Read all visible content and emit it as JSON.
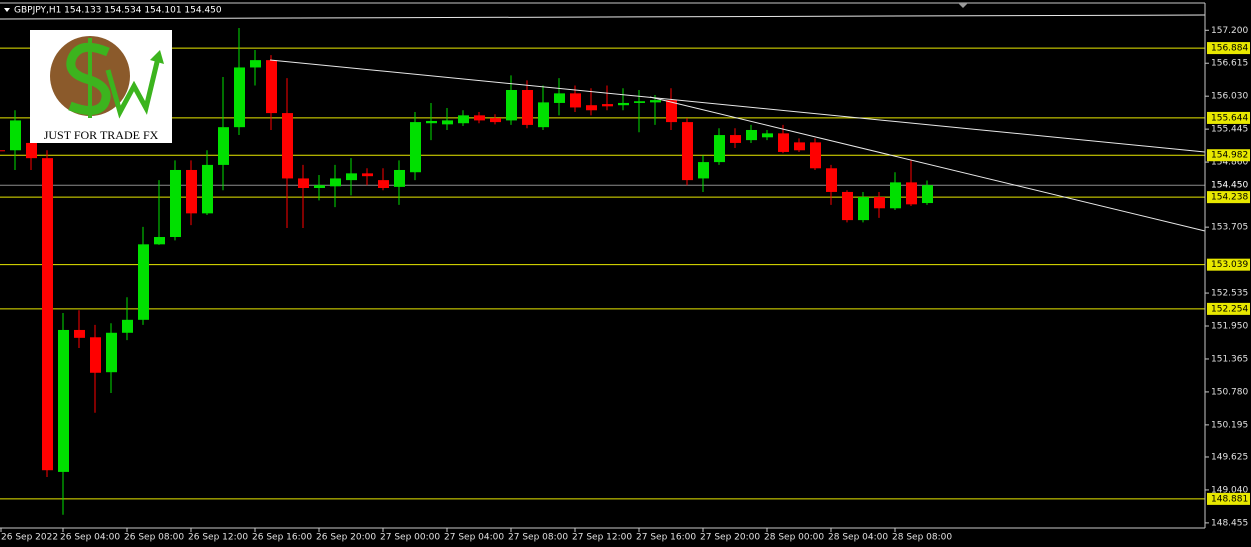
{
  "chart_data": {
    "type": "candlestick",
    "title": "GBPJPY,H1 154.133 154.534 154.101 154.450",
    "annotation": "JUST FOR TRADE FX",
    "categories": [
      "26 Sep 2022",
      null,
      null,
      null,
      "26 Sep 04:00",
      null,
      null,
      null,
      "26 Sep 08:00",
      null,
      null,
      null,
      "26 Sep 12:00",
      null,
      null,
      null,
      "26 Sep 16:00",
      null,
      null,
      null,
      "26 Sep 20:00",
      null,
      null,
      null,
      "27 Sep 00:00",
      null,
      null,
      null,
      "27 Sep 04:00",
      null,
      null,
      null,
      "27 Sep 08:00",
      null,
      null,
      null,
      "27 Sep 12:00",
      null,
      null,
      null,
      "27 Sep 16:00",
      null,
      null,
      null,
      "27 Sep 20:00",
      null,
      null,
      null,
      "28 Sep 00:00",
      null,
      null,
      null,
      "28 Sep 04:00",
      null,
      null,
      null,
      "28 Sep 08:00",
      null,
      null
    ],
    "open": [
      155.07,
      155.07,
      155.2,
      154.93,
      149.36,
      151.88,
      151.75,
      151.13,
      151.83,
      152.06,
      153.4,
      153.53,
      154.72,
      153.95,
      154.81,
      155.48,
      156.54,
      156.67,
      155.73,
      154.57,
      154.4,
      154.43,
      154.54,
      154.66,
      154.54,
      154.42,
      154.68,
      155.55,
      155.53,
      155.55,
      155.69,
      155.64,
      155.6,
      156.14,
      155.48,
      155.91,
      156.08,
      155.87,
      155.89,
      155.87,
      155.91,
      155.92,
      155.96,
      155.57,
      154.57,
      154.86,
      155.34,
      155.25,
      155.3,
      155.37,
      155.21,
      155.21,
      154.75,
      154.33,
      153.83,
      154.24,
      154.04,
      154.5,
      154.133
    ],
    "high": [
      155.25,
      155.78,
      155.34,
      155.07,
      152.18,
      152.23,
      151.97,
      152.0,
      152.46,
      153.71,
      154.54,
      154.89,
      154.89,
      155.07,
      156.37,
      157.24,
      156.85,
      156.76,
      156.35,
      154.81,
      154.63,
      154.81,
      154.93,
      154.75,
      154.75,
      154.89,
      155.75,
      155.91,
      155.82,
      155.78,
      155.75,
      155.71,
      156.4,
      156.31,
      156.22,
      156.35,
      156.22,
      156.17,
      156.22,
      156.17,
      156.14,
      156.05,
      156.17,
      155.64,
      154.98,
      155.46,
      155.46,
      155.52,
      155.43,
      155.52,
      155.28,
      155.28,
      154.81,
      154.36,
      154.33,
      154.33,
      154.68,
      154.89,
      154.534
    ],
    "low": [
      154.86,
      154.72,
      154.72,
      149.27,
      148.6,
      151.56,
      150.41,
      150.76,
      151.7,
      151.97,
      153.39,
      153.47,
      153.74,
      153.92,
      154.36,
      155.34,
      156.22,
      155.43,
      153.69,
      153.69,
      154.18,
      154.06,
      154.27,
      154.45,
      154.36,
      154.1,
      154.54,
      155.25,
      155.43,
      155.5,
      155.55,
      155.53,
      155.52,
      155.46,
      155.43,
      155.69,
      155.75,
      155.69,
      155.78,
      155.78,
      155.39,
      155.52,
      155.43,
      154.45,
      154.33,
      154.81,
      155.11,
      155.2,
      155.25,
      155.02,
      155.04,
      154.72,
      154.1,
      153.79,
      153.79,
      153.87,
      154.01,
      154.08,
      154.101
    ],
    "close": [
      155.06,
      155.6,
      154.93,
      149.39,
      151.88,
      151.74,
      151.12,
      151.83,
      152.06,
      153.4,
      153.53,
      154.72,
      153.95,
      154.81,
      155.48,
      156.54,
      156.67,
      155.73,
      154.57,
      154.4,
      154.45,
      154.57,
      154.66,
      154.61,
      154.4,
      154.72,
      155.57,
      155.59,
      155.6,
      155.69,
      155.6,
      155.57,
      156.14,
      155.52,
      155.92,
      156.08,
      155.83,
      155.78,
      155.85,
      155.91,
      155.94,
      155.96,
      155.57,
      154.54,
      154.86,
      155.34,
      155.2,
      155.43,
      155.37,
      155.04,
      155.07,
      154.75,
      154.33,
      153.83,
      154.24,
      154.04,
      154.5,
      154.11,
      154.45
    ],
    "up_color": "#00e000",
    "down_color": "#ff0000",
    "ylim": [
      148.24,
      157.56
    ],
    "yticks": [
      {
        "value": 157.2,
        "label": "157.200"
      },
      156.615,
      {
        "value": 156.03,
        "label": "156.030"
      },
      155.445,
      {
        "value": 154.86,
        "label": "154.860"
      },
      153.705,
      152.535,
      {
        "value": 151.95,
        "label": "151.950"
      },
      151.365,
      {
        "value": 150.78,
        "label": "150.780"
      },
      150.195,
      149.625,
      {
        "value": 149.04,
        "label": "149.040"
      },
      148.455
    ],
    "levels": [
      156.884,
      155.644,
      154.982,
      154.238,
      153.039,
      152.254,
      148.881
    ],
    "level_color": "#e8e800",
    "price_line": {
      "value": 154.45,
      "label": "154.450"
    },
    "price_line_color": "#8c8c8c"
  }
}
